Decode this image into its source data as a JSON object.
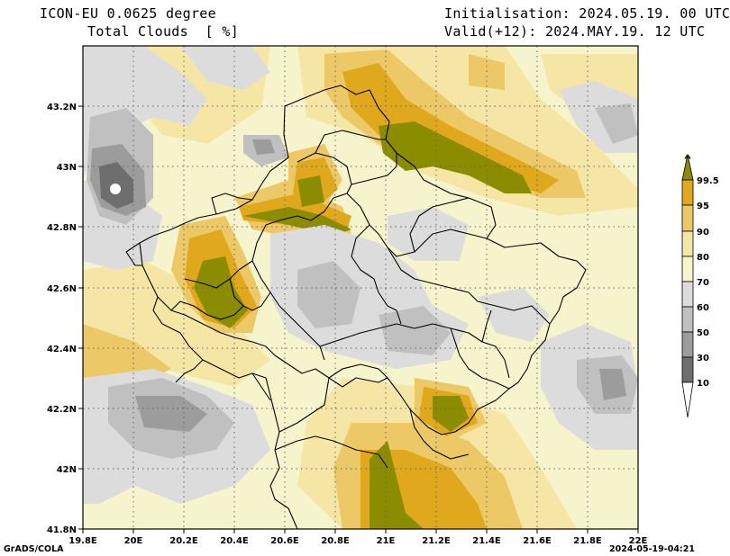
{
  "header": {
    "model": "ICON-EU 0.0625 degree",
    "variable": "Total Clouds  [ %]",
    "init": "Initialisation: 2024.05.19. 00 UTC",
    "valid": "Valid(+12): 2024.MAY.19. 12 UTC"
  },
  "footer": {
    "credit": "GrADS/COLA",
    "timestamp": "2024-05-19-04:21"
  },
  "map": {
    "lon_ticks": [
      "19.8E",
      "20E",
      "20.2E",
      "20.4E",
      "20.6E",
      "20.8E",
      "21E",
      "21.2E",
      "21.4E",
      "21.6E",
      "21.8E",
      "22E"
    ],
    "lat_ticks": [
      "43.2N",
      "43N",
      "42.8N",
      "42.6N",
      "42.4N",
      "42.2N",
      "42N",
      "41.8N"
    ],
    "lon_range": [
      19.8,
      22.0
    ],
    "lat_range": [
      41.8,
      43.4
    ],
    "grid": "dotted",
    "projection": "lat-lon"
  },
  "colorbar": {
    "labels": [
      "99.5",
      "95",
      "90",
      "80",
      "70",
      "60",
      "50",
      "30",
      "10"
    ],
    "colors": [
      "#8c8c00",
      "#e0a81c",
      "#ecc866",
      "#f6e6a6",
      "#f6f4cc",
      "#dcdcdc",
      "#c0c0c0",
      "#9c9c9c",
      "#6e6e6e",
      "#ffffff"
    ]
  }
}
